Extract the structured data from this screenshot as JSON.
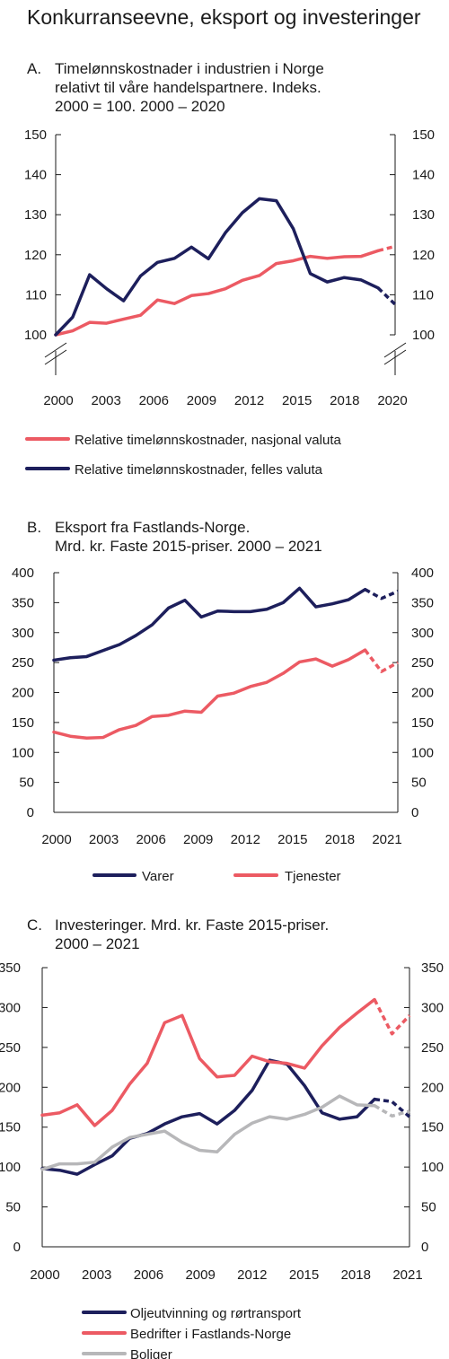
{
  "title": "Konkurranseevne, eksport og investeringer",
  "colors": {
    "navy": "#1d1f5c",
    "red": "#ec5a63",
    "grey": "#b7b7b9",
    "axis": "#1a1a1a"
  },
  "chart_data": [
    {
      "type": "line",
      "panel": "A.",
      "title_lines": [
        "Timelønnskostnader i industrien i Norge",
        "relativt til våre handelspartnere. Indeks.",
        "2000 = 100. 2000 – 2020"
      ],
      "ylim": [
        100,
        150
      ],
      "yticks": [
        "100",
        "110",
        "120",
        "130",
        "140",
        "150"
      ],
      "xlim": [
        2000,
        2020
      ],
      "xticks": [
        "2000",
        "2003",
        "2006",
        "2009",
        "2012",
        "2015",
        "2018",
        "2020"
      ],
      "axis_break": true,
      "grid": false,
      "legend_position": "bottom",
      "series": [
        {
          "name": "Relative timelønnskostnader, nasjonal valuta",
          "color": "red",
          "x": [
            2000,
            2001,
            2002,
            2003,
            2004,
            2005,
            2006,
            2007,
            2008,
            2009,
            2010,
            2011,
            2012,
            2013,
            2014,
            2015,
            2016,
            2017,
            2018,
            2019,
            2020
          ],
          "values": [
            100.0,
            101.0,
            103.1,
            102.9,
            103.9,
            104.9,
            108.7,
            107.8,
            109.8,
            110.3,
            111.5,
            113.6,
            114.8,
            117.8,
            118.5,
            119.6,
            119.1,
            119.5,
            119.6,
            121.0,
            122.1
          ],
          "dashed_from": 2019
        },
        {
          "name": "Relative timelønnskostnader, felles valuta",
          "color": "navy",
          "x": [
            2000,
            2001,
            2002,
            2003,
            2004,
            2005,
            2006,
            2007,
            2008,
            2009,
            2010,
            2011,
            2012,
            2013,
            2014,
            2015,
            2016,
            2017,
            2018,
            2019,
            2020
          ],
          "values": [
            100.0,
            104.4,
            115.0,
            111.5,
            108.5,
            114.7,
            118.1,
            119.1,
            121.9,
            119.0,
            125.5,
            130.5,
            134.0,
            133.5,
            126.5,
            115.3,
            113.2,
            114.3,
            113.7,
            111.7,
            107.6
          ],
          "dashed_from": 2019
        }
      ]
    },
    {
      "type": "line",
      "panel": "B.",
      "title_lines": [
        "Eksport fra Fastlands-Norge.",
        "Mrd. kr. Faste 2015-priser. 2000 – 2021"
      ],
      "ylim": [
        0,
        400
      ],
      "yticks": [
        "0",
        "50",
        "100",
        "150",
        "200",
        "250",
        "300",
        "350",
        "400"
      ],
      "xlim": [
        2000,
        2021
      ],
      "xticks": [
        "2000",
        "2003",
        "2006",
        "2009",
        "2012",
        "2015",
        "2018",
        "2021"
      ],
      "axis_break": false,
      "grid": false,
      "legend_position": "bottom",
      "series": [
        {
          "name": "Varer",
          "color": "navy",
          "x": [
            2000,
            2001,
            2002,
            2003,
            2004,
            2005,
            2006,
            2007,
            2008,
            2009,
            2010,
            2011,
            2012,
            2013,
            2014,
            2015,
            2016,
            2017,
            2018,
            2019,
            2020,
            2021
          ],
          "values": [
            254,
            258,
            260,
            270,
            280,
            295,
            313,
            341,
            354,
            326,
            336,
            335,
            335,
            339,
            350,
            374,
            343,
            348,
            355,
            372,
            357,
            369
          ],
          "dashed_from": 2019
        },
        {
          "name": "Tjenester",
          "color": "red",
          "x": [
            2000,
            2001,
            2002,
            2003,
            2004,
            2005,
            2006,
            2007,
            2008,
            2009,
            2010,
            2011,
            2012,
            2013,
            2014,
            2015,
            2016,
            2017,
            2018,
            2019,
            2020,
            2021
          ],
          "values": [
            134,
            127,
            124,
            125,
            138,
            145,
            160,
            162,
            169,
            167,
            194,
            199,
            210,
            217,
            232,
            251,
            256,
            244,
            255,
            271,
            235,
            250
          ],
          "dashed_from": 2019
        }
      ]
    },
    {
      "type": "line",
      "panel": "C.",
      "title_lines": [
        "Investeringer. Mrd. kr. Faste 2015-priser.",
        "2000 – 2021"
      ],
      "ylim": [
        0,
        350
      ],
      "yticks": [
        "0",
        "50",
        "100",
        "150",
        "200",
        "250",
        "300",
        "350"
      ],
      "xlim": [
        2000,
        2021
      ],
      "xticks": [
        "2000",
        "2003",
        "2006",
        "2009",
        "2012",
        "2015",
        "2018",
        "2021"
      ],
      "axis_break": false,
      "grid": false,
      "legend_position": "bottom",
      "series": [
        {
          "name": "Oljeutvinning og rørtransport",
          "color": "navy",
          "x": [
            2000,
            2001,
            2002,
            2003,
            2004,
            2005,
            2006,
            2007,
            2008,
            2009,
            2010,
            2011,
            2012,
            2013,
            2014,
            2015,
            2016,
            2017,
            2018,
            2019,
            2020,
            2021
          ],
          "values": [
            98,
            96,
            91,
            103,
            114,
            136,
            142,
            154,
            163,
            167,
            154,
            171,
            196,
            234,
            229,
            202,
            168,
            160,
            163,
            185,
            182,
            163
          ],
          "dashed_from": 2019
        },
        {
          "name": "Bedrifter i Fastlands-Norge",
          "color": "red",
          "x": [
            2000,
            2001,
            2002,
            2003,
            2004,
            2005,
            2006,
            2007,
            2008,
            2009,
            2010,
            2011,
            2012,
            2013,
            2014,
            2015,
            2016,
            2017,
            2018,
            2019,
            2020,
            2021
          ],
          "values": [
            165,
            168,
            178,
            152,
            171,
            204,
            230,
            281,
            290,
            236,
            213,
            215,
            239,
            232,
            230,
            224,
            252,
            275,
            293,
            310,
            267,
            290
          ],
          "dashed_from": 2019
        },
        {
          "name": "Boliger",
          "color": "grey",
          "x": [
            2000,
            2001,
            2002,
            2003,
            2004,
            2005,
            2006,
            2007,
            2008,
            2009,
            2010,
            2011,
            2012,
            2013,
            2014,
            2015,
            2016,
            2017,
            2018,
            2019,
            2020,
            2021
          ],
          "values": [
            97,
            104,
            104,
            106,
            125,
            137,
            141,
            145,
            131,
            121,
            119,
            141,
            155,
            163,
            160,
            166,
            175,
            189,
            178,
            177,
            164,
            170
          ],
          "dashed_from": 2019
        }
      ]
    }
  ]
}
